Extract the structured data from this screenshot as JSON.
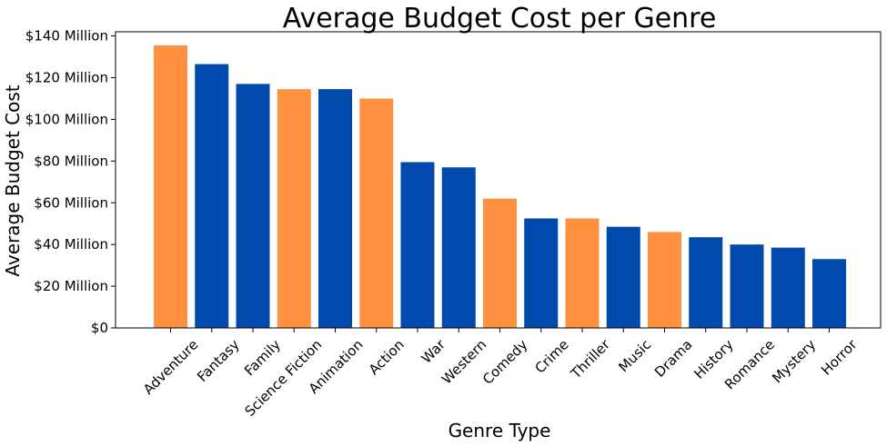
{
  "chart_data": {
    "type": "bar",
    "title": "Average Budget Cost per Genre",
    "xlabel": "Genre Type",
    "ylabel": "Average Budget Cost",
    "ylim": [
      0,
      142
    ],
    "yticks": [
      0,
      20,
      40,
      60,
      80,
      100,
      120,
      140
    ],
    "ytick_labels": [
      "$0",
      "$20 Million",
      "$40 Million",
      "$60 Million",
      "$80 Million",
      "$100 Million",
      "$120 Million",
      "$140 Million"
    ],
    "grid": false,
    "categories": [
      "Adventure",
      "Fantasy",
      "Family",
      "Science Fiction",
      "Animation",
      "Action",
      "War",
      "Western",
      "Comedy",
      "Crime",
      "Thriller",
      "Music",
      "Drama",
      "History",
      "Romance",
      "Mystery",
      "Horror"
    ],
    "values": [
      135.5,
      126.5,
      117,
      114.5,
      114.5,
      110,
      79.5,
      77,
      62,
      52.5,
      52.5,
      48.5,
      46,
      43.5,
      40,
      38.5,
      33
    ],
    "colors": [
      "#ff9140",
      "#004aad",
      "#004aad",
      "#ff9140",
      "#004aad",
      "#ff9140",
      "#004aad",
      "#004aad",
      "#ff9140",
      "#004aad",
      "#ff9140",
      "#004aad",
      "#ff9140",
      "#004aad",
      "#004aad",
      "#004aad",
      "#004aad"
    ]
  }
}
